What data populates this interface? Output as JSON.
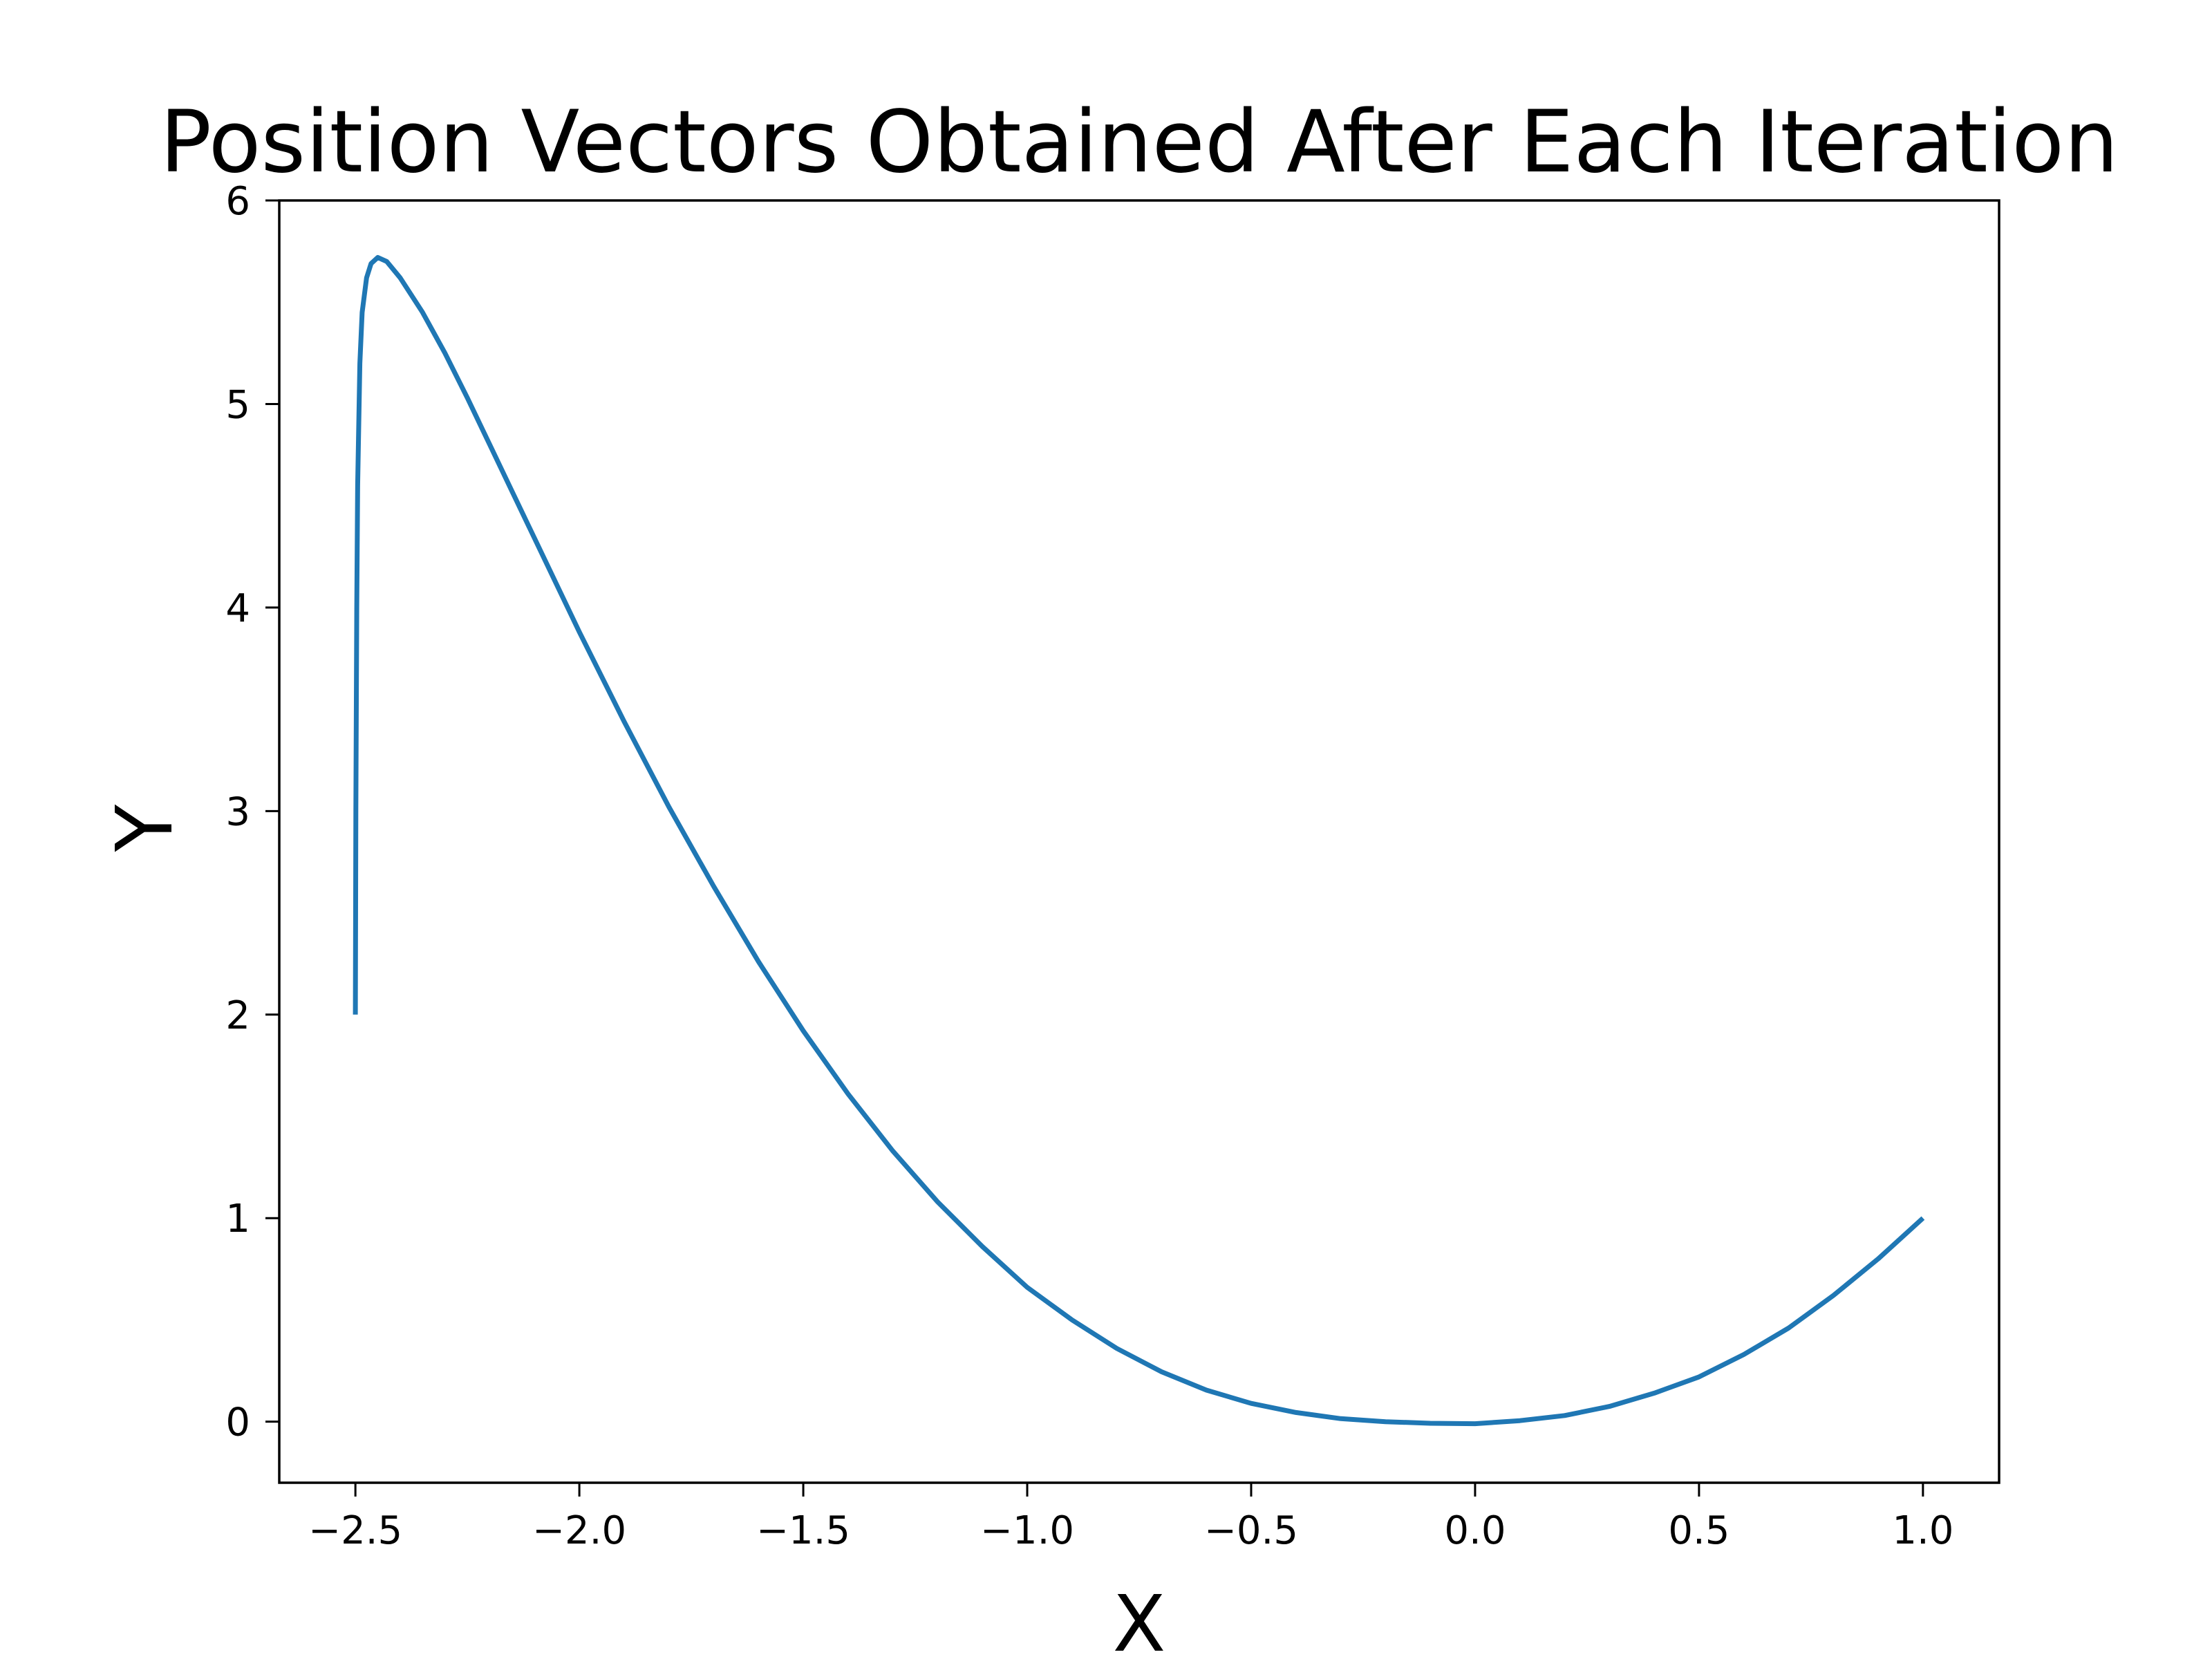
{
  "chart_data": {
    "type": "line",
    "title": "Position Vectors Obtained After Each Iteration",
    "xlabel": "X",
    "ylabel": "Y",
    "xlim": [
      -2.67,
      1.17
    ],
    "ylim": [
      -0.3,
      6.0
    ],
    "grid": false,
    "x_ticks": [
      -2.5,
      -2.0,
      -1.5,
      -1.0,
      -0.5,
      0.0,
      0.5,
      1.0
    ],
    "x_tick_labels": [
      "−2.5",
      "−2.0",
      "−1.5",
      "−1.0",
      "−0.5",
      "0.0",
      "0.5",
      "1.0"
    ],
    "y_ticks": [
      0,
      1,
      2,
      3,
      4,
      5,
      6
    ],
    "y_tick_labels": [
      "0",
      "1",
      "2",
      "3",
      "4",
      "5",
      "6"
    ],
    "series": [
      {
        "color": "#1f77b4",
        "points": [
          [
            -2.5,
            2.0
          ],
          [
            -2.499,
            3.0
          ],
          [
            -2.497,
            4.0
          ],
          [
            -2.495,
            4.6
          ],
          [
            -2.49,
            5.2
          ],
          [
            -2.485,
            5.45
          ],
          [
            -2.475,
            5.62
          ],
          [
            -2.465,
            5.69
          ],
          [
            -2.45,
            5.72
          ],
          [
            -2.43,
            5.7
          ],
          [
            -2.4,
            5.62
          ],
          [
            -2.35,
            5.45
          ],
          [
            -2.3,
            5.25
          ],
          [
            -2.25,
            5.03
          ],
          [
            -2.2,
            4.8
          ],
          [
            -2.15,
            4.57
          ],
          [
            -2.1,
            4.34
          ],
          [
            -2.05,
            4.11
          ],
          [
            -2.0,
            3.88
          ],
          [
            -1.9,
            3.44
          ],
          [
            -1.8,
            3.02
          ],
          [
            -1.7,
            2.63
          ],
          [
            -1.6,
            2.26
          ],
          [
            -1.5,
            1.92
          ],
          [
            -1.4,
            1.61
          ],
          [
            -1.3,
            1.33
          ],
          [
            -1.2,
            1.08
          ],
          [
            -1.1,
            0.86
          ],
          [
            -1.0,
            0.66
          ],
          [
            -0.9,
            0.5
          ],
          [
            -0.8,
            0.36
          ],
          [
            -0.7,
            0.245
          ],
          [
            -0.6,
            0.155
          ],
          [
            -0.5,
            0.09
          ],
          [
            -0.4,
            0.045
          ],
          [
            -0.3,
            0.015
          ],
          [
            -0.2,
            0.0
          ],
          [
            -0.1,
            -0.008
          ],
          [
            0.0,
            -0.01
          ],
          [
            0.1,
            0.005
          ],
          [
            0.2,
            0.03
          ],
          [
            0.3,
            0.075
          ],
          [
            0.4,
            0.14
          ],
          [
            0.5,
            0.22
          ],
          [
            0.6,
            0.33
          ],
          [
            0.7,
            0.46
          ],
          [
            0.8,
            0.62
          ],
          [
            0.9,
            0.8
          ],
          [
            1.0,
            1.0
          ]
        ]
      }
    ]
  }
}
